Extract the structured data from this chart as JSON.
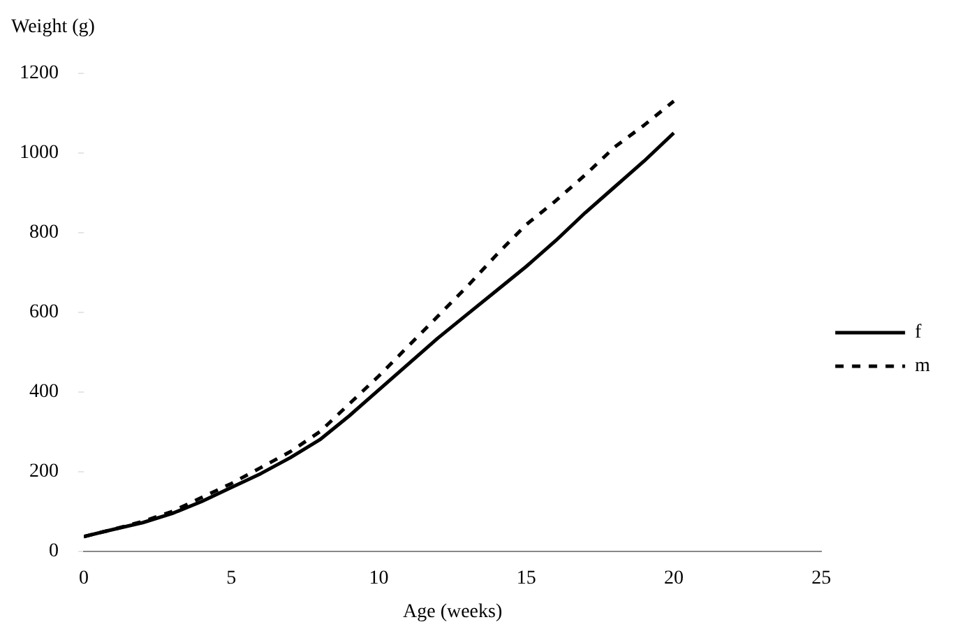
{
  "chart_data": {
    "type": "line",
    "xlabel": "Age (weeks)",
    "ylabel": "Weight (g)",
    "x": [
      0,
      1,
      2,
      3,
      4,
      5,
      6,
      7,
      8,
      9,
      10,
      11,
      12,
      13,
      14,
      15,
      16,
      17,
      18,
      19,
      20
    ],
    "series": [
      {
        "name": "f",
        "color": "#000000",
        "line_style": "solid",
        "values": [
          37,
          55,
          72,
          95,
          125,
          160,
          195,
          235,
          280,
          340,
          405,
          470,
          535,
          595,
          655,
          715,
          780,
          850,
          915,
          980,
          1050
        ]
      },
      {
        "name": "m",
        "color": "#000000",
        "line_style": "dashed",
        "values": [
          37,
          55,
          75,
          100,
          135,
          170,
          210,
          250,
          300,
          370,
          440,
          515,
          590,
          665,
          745,
          820,
          880,
          945,
          1015,
          1070,
          1130
        ]
      }
    ],
    "xlim": [
      0,
      25
    ],
    "xticks": [
      0,
      5,
      10,
      15,
      20,
      25
    ],
    "ylim": [
      0,
      1200
    ],
    "yticks": [
      0,
      200,
      400,
      600,
      800,
      1000,
      1200
    ],
    "grid": false,
    "legend": "right",
    "marker": "none"
  }
}
